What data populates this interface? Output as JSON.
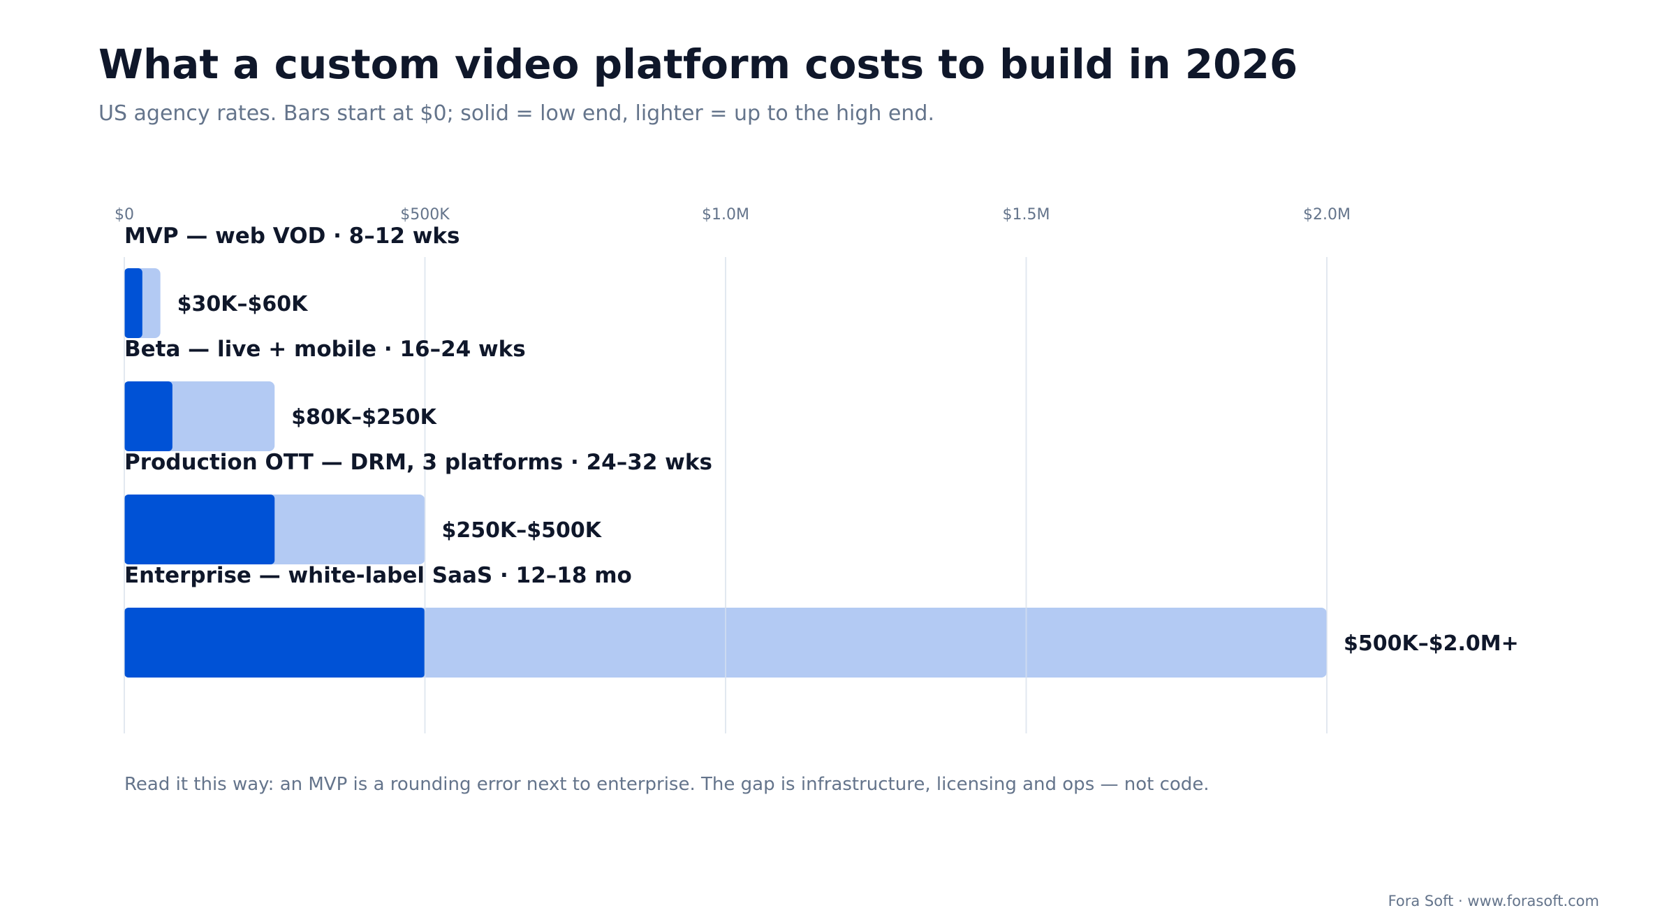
{
  "header": {
    "title": "What a custom video platform costs to build in 2026",
    "subtitle": "US agency rates. Bars start at $0; solid = low end, lighter = up to the high end."
  },
  "chart_data": {
    "type": "bar",
    "orientation": "horizontal",
    "categories": [
      "MVP — web VOD · 8–12 wks",
      "Beta — live + mobile · 16–24 wks",
      "Production OTT — DRM, 3 platforms · 24–32 wks",
      "Enterprise — white-label SaaS · 12–18 mo"
    ],
    "series": [
      {
        "name": "low end",
        "values": [
          30000,
          80000,
          250000,
          500000
        ]
      },
      {
        "name": "high end",
        "values": [
          60000,
          250000,
          500000,
          2000000
        ]
      }
    ],
    "value_labels": [
      "$30K–$60K",
      "$80K–$250K",
      "$250K–$500K",
      "$500K–$2.0M+"
    ],
    "xlim": [
      0,
      2000000
    ],
    "ticks": [
      0,
      500000,
      1000000,
      1500000,
      2000000
    ],
    "tick_labels": [
      "$0",
      "$500K",
      "$1.0M",
      "$1.5M",
      "$2.0M"
    ],
    "grid": true,
    "colors": {
      "low": "#0052d6",
      "high": "#b3caf3",
      "grid": "#e2e8f0"
    }
  },
  "footer": {
    "note": "Read it this way: an MVP is a rounding error next to enterprise. The gap is infrastructure, licensing and ops — not code.",
    "credit": "Fora Soft · www.forasoft.com"
  }
}
